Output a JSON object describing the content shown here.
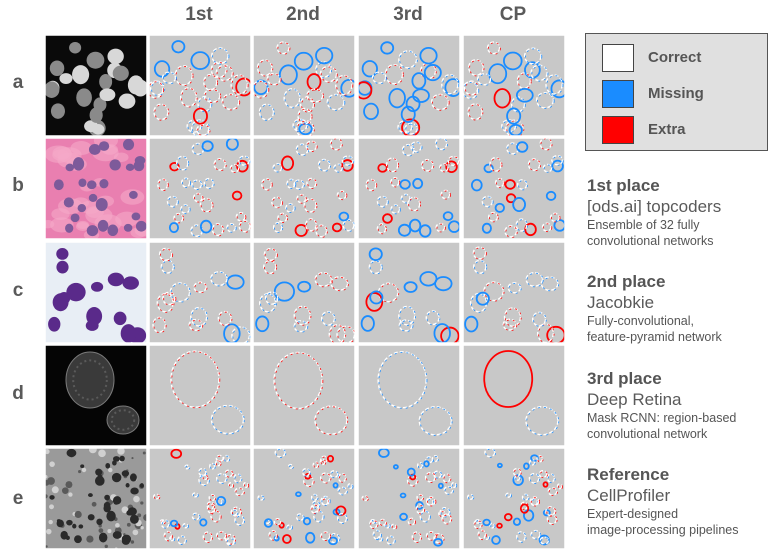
{
  "columns": [
    {
      "label": "1st"
    },
    {
      "label": "2nd"
    },
    {
      "label": "3rd"
    },
    {
      "label": "CP"
    }
  ],
  "rows": [
    {
      "label": "a",
      "image": "fluorescent-nuclei"
    },
    {
      "label": "b",
      "image": "he-stained-tissue"
    },
    {
      "label": "c",
      "image": "purple-stained-cells"
    },
    {
      "label": "d",
      "image": "dim-fluorescent-cells"
    },
    {
      "label": "e",
      "image": "grayscale-brightfield"
    }
  ],
  "legend": {
    "items": [
      {
        "label": "Correct",
        "color": "#ffffff"
      },
      {
        "label": "Missing",
        "color": "#1a8cff"
      },
      {
        "label": "Extra",
        "color": "#ff0000"
      }
    ]
  },
  "entries": [
    {
      "place": "1st place",
      "team": "[ods.ai] topcoders",
      "desc": [
        "Ensemble of 32 fully",
        "convolutional networks"
      ]
    },
    {
      "place": "2nd place",
      "team": "Jacobkie",
      "desc": [
        "Fully-convolutional,",
        "feature-pyramid network"
      ]
    },
    {
      "place": "3rd place",
      "team": "Deep Retina",
      "desc": [
        "Mask RCNN: region-based",
        "convolutional network"
      ]
    },
    {
      "place": "Reference",
      "team": "CellProfiler",
      "desc": [
        "Expert-designed",
        "image-processing pipelines"
      ]
    }
  ],
  "colors": {
    "correct": "#ffffff",
    "missing": "#1a8cff",
    "extra": "#ff0000",
    "panel_background": "#c8c8c8"
  }
}
